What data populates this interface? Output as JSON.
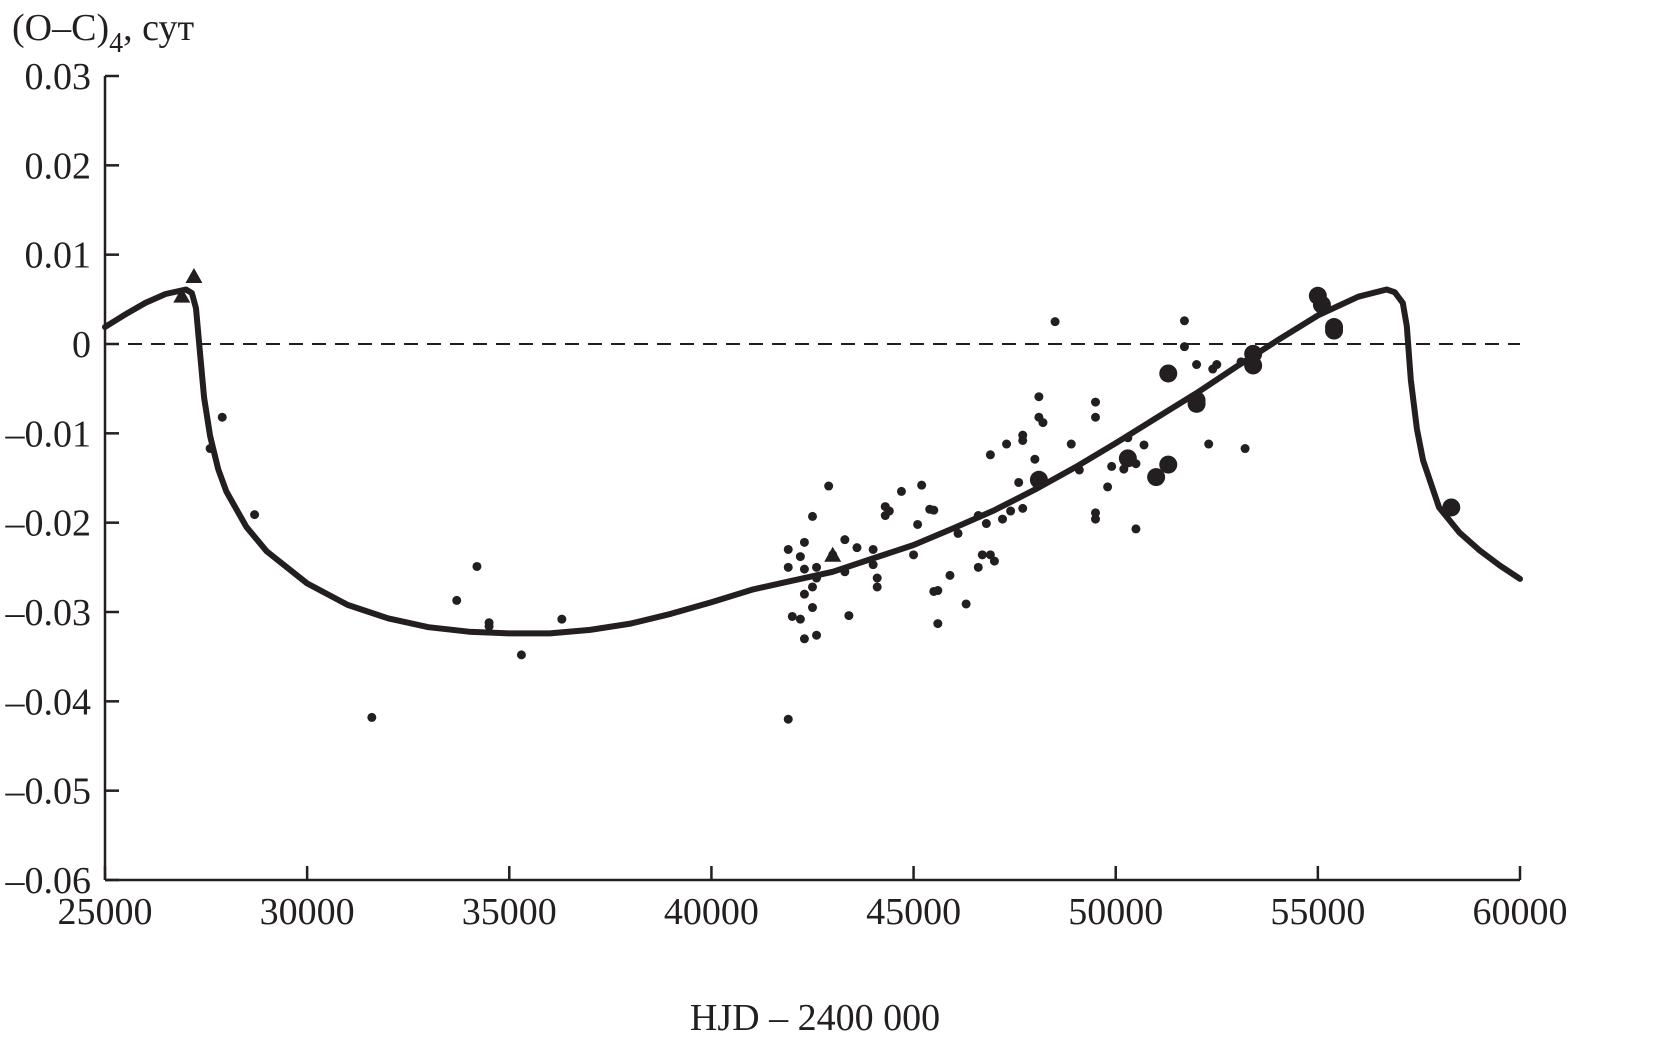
{
  "chart_data": {
    "type": "scatter",
    "title": "",
    "ylabel": "(O–C)",
    "ylabel_subscript": "4",
    "ylabel_suffix": ", сут",
    "xlabel": "HJD – 2400 000",
    "xlim": [
      25000,
      60000
    ],
    "ylim": [
      -0.06,
      0.03
    ],
    "x_ticks": [
      25000,
      30000,
      35000,
      40000,
      45000,
      50000,
      55000,
      60000
    ],
    "x_tick_labels": [
      "25000",
      "30000",
      "35000",
      "40000",
      "45000",
      "50000",
      "55000",
      "60000"
    ],
    "y_ticks": [
      0.03,
      0.02,
      0.01,
      0,
      -0.01,
      -0.02,
      -0.03,
      -0.04,
      -0.05,
      -0.06
    ],
    "y_tick_labels": [
      "0.03",
      "0.02",
      "0.01",
      "0",
      "–0.01",
      "–0.02",
      "–0.03",
      "–0.04",
      "–0.05",
      "–0.06"
    ],
    "grid": false,
    "reference_line": {
      "y": 0,
      "style": "dashed"
    },
    "series": [
      {
        "marker": "small-dot",
        "points": [
          [
            27600,
            -0.0117
          ],
          [
            27900,
            -0.0082
          ],
          [
            28700,
            -0.0191
          ],
          [
            31600,
            -0.0418
          ],
          [
            33700,
            -0.0287
          ],
          [
            34200,
            -0.0249
          ],
          [
            34500,
            -0.0312
          ],
          [
            34500,
            -0.0316
          ],
          [
            35300,
            -0.0348
          ],
          [
            36300,
            -0.0308
          ],
          [
            41900,
            -0.023
          ],
          [
            41900,
            -0.025
          ],
          [
            42000,
            -0.0305
          ],
          [
            41900,
            -0.042
          ],
          [
            42200,
            -0.0238
          ],
          [
            42300,
            -0.0222
          ],
          [
            42300,
            -0.0252
          ],
          [
            42300,
            -0.028
          ],
          [
            42200,
            -0.0308
          ],
          [
            42300,
            -0.033
          ],
          [
            42500,
            -0.0193
          ],
          [
            42500,
            -0.0272
          ],
          [
            42500,
            -0.0295
          ],
          [
            42600,
            -0.025
          ],
          [
            42600,
            -0.0262
          ],
          [
            42600,
            -0.0326
          ],
          [
            42900,
            -0.0159
          ],
          [
            43000,
            -0.0236
          ],
          [
            43300,
            -0.0219
          ],
          [
            43300,
            -0.0255
          ],
          [
            43400,
            -0.0304
          ],
          [
            43600,
            -0.0228
          ],
          [
            44000,
            -0.023
          ],
          [
            44000,
            -0.0247
          ],
          [
            44100,
            -0.0262
          ],
          [
            44100,
            -0.0272
          ],
          [
            44300,
            -0.0182
          ],
          [
            44300,
            -0.0192
          ],
          [
            44400,
            -0.0187
          ],
          [
            44700,
            -0.0165
          ],
          [
            45000,
            -0.0236
          ],
          [
            45100,
            -0.0202
          ],
          [
            45200,
            -0.0158
          ],
          [
            45400,
            -0.0185
          ],
          [
            45500,
            -0.0186
          ],
          [
            45500,
            -0.0277
          ],
          [
            45600,
            -0.0276
          ],
          [
            45600,
            -0.0313
          ],
          [
            45900,
            -0.0259
          ],
          [
            46100,
            -0.0212
          ],
          [
            46300,
            -0.0291
          ],
          [
            46600,
            -0.0192
          ],
          [
            46600,
            -0.025
          ],
          [
            46700,
            -0.0236
          ],
          [
            46800,
            -0.0201
          ],
          [
            46900,
            -0.0124
          ],
          [
            46900,
            -0.0236
          ],
          [
            47000,
            -0.0243
          ],
          [
            47200,
            -0.0196
          ],
          [
            47300,
            -0.0112
          ],
          [
            47400,
            -0.0187
          ],
          [
            47600,
            -0.0155
          ],
          [
            47700,
            -0.0102
          ],
          [
            47700,
            -0.0108
          ],
          [
            47700,
            -0.0184
          ],
          [
            48000,
            -0.0129
          ],
          [
            48100,
            -0.0059
          ],
          [
            48100,
            -0.0082
          ],
          [
            48200,
            -0.0088
          ],
          [
            48200,
            -0.015
          ],
          [
            48500,
            0.0025
          ],
          [
            48900,
            -0.0112
          ],
          [
            49100,
            -0.0141
          ],
          [
            49500,
            -0.0065
          ],
          [
            49500,
            -0.0082
          ],
          [
            49500,
            -0.0189
          ],
          [
            49500,
            -0.0196
          ],
          [
            49800,
            -0.016
          ],
          [
            49900,
            -0.0137
          ],
          [
            50200,
            -0.014
          ],
          [
            50300,
            -0.0105
          ],
          [
            50500,
            -0.0134
          ],
          [
            50500,
            -0.0207
          ],
          [
            50700,
            -0.0113
          ],
          [
            51700,
            0.0026
          ],
          [
            51700,
            -0.0003
          ],
          [
            52000,
            -0.0023
          ],
          [
            52300,
            -0.0112
          ],
          [
            52400,
            -0.0028
          ],
          [
            52500,
            -0.0023
          ],
          [
            53100,
            -0.002
          ],
          [
            53200,
            -0.0117
          ]
        ]
      },
      {
        "marker": "large-dot",
        "points": [
          [
            48100,
            -0.0152
          ],
          [
            50300,
            -0.0128
          ],
          [
            51000,
            -0.0149
          ],
          [
            51300,
            -0.0135
          ],
          [
            51300,
            -0.0033
          ],
          [
            52000,
            -0.0063
          ],
          [
            52000,
            -0.0067
          ],
          [
            53400,
            -0.0011
          ],
          [
            53400,
            -0.0024
          ],
          [
            55000,
            0.0054
          ],
          [
            55100,
            0.0044
          ],
          [
            55400,
            0.0019
          ],
          [
            55400,
            0.0015
          ],
          [
            58300,
            -0.0183
          ]
        ]
      },
      {
        "marker": "triangle",
        "points": [
          [
            26900,
            0.0053
          ],
          [
            27200,
            0.0075
          ],
          [
            43000,
            -0.0237
          ]
        ]
      },
      {
        "marker": "line",
        "points": [
          [
            25000,
            0.0019
          ],
          [
            25500,
            0.0033
          ],
          [
            26000,
            0.0046
          ],
          [
            26500,
            0.0056
          ],
          [
            27000,
            0.0061
          ],
          [
            27150,
            0.0057
          ],
          [
            27250,
            0.004
          ],
          [
            27350,
            -0.001
          ],
          [
            27450,
            -0.006
          ],
          [
            27600,
            -0.0103
          ],
          [
            27800,
            -0.014
          ],
          [
            28000,
            -0.0165
          ],
          [
            28500,
            -0.0205
          ],
          [
            29000,
            -0.0232
          ],
          [
            30000,
            -0.0268
          ],
          [
            31000,
            -0.0292
          ],
          [
            32000,
            -0.0307
          ],
          [
            33000,
            -0.0317
          ],
          [
            34000,
            -0.0322
          ],
          [
            35000,
            -0.0324
          ],
          [
            36000,
            -0.0324
          ],
          [
            37000,
            -0.032
          ],
          [
            38000,
            -0.0313
          ],
          [
            39000,
            -0.0302
          ],
          [
            40000,
            -0.0289
          ],
          [
            41000,
            -0.0275
          ],
          [
            42000,
            -0.0265
          ],
          [
            43000,
            -0.0255
          ],
          [
            44000,
            -0.024
          ],
          [
            45000,
            -0.0225
          ],
          [
            46000,
            -0.0206
          ],
          [
            47000,
            -0.0186
          ],
          [
            48000,
            -0.0163
          ],
          [
            49000,
            -0.0138
          ],
          [
            50000,
            -0.0111
          ],
          [
            51000,
            -0.0083
          ],
          [
            52000,
            -0.0055
          ],
          [
            53000,
            -0.0025
          ],
          [
            54000,
            0.0004
          ],
          [
            55000,
            0.0032
          ],
          [
            56000,
            0.0053
          ],
          [
            56700,
            0.0061
          ],
          [
            56900,
            0.0058
          ],
          [
            57100,
            0.0046
          ],
          [
            57200,
            0.002
          ],
          [
            57300,
            -0.004
          ],
          [
            57450,
            -0.0095
          ],
          [
            57600,
            -0.013
          ],
          [
            58000,
            -0.0183
          ],
          [
            58500,
            -0.0211
          ],
          [
            59000,
            -0.0231
          ],
          [
            59500,
            -0.0248
          ],
          [
            60000,
            -0.0263
          ]
        ]
      }
    ]
  }
}
